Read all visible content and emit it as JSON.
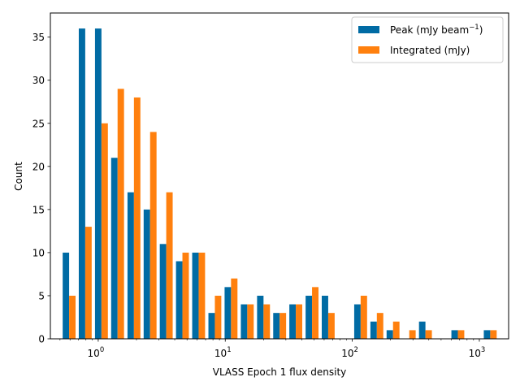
{
  "chart_data": {
    "type": "bar",
    "title": "",
    "xlabel": "VLASS Epoch 1 flux density",
    "ylabel": "Count",
    "xscale": "log",
    "xlim": [
      0.42,
      1700
    ],
    "ylim": [
      0,
      37.8
    ],
    "x_ticks": [
      {
        "base": "10",
        "exp": "0",
        "value": 1
      },
      {
        "base": "10",
        "exp": "1",
        "value": 10
      },
      {
        "base": "10",
        "exp": "2",
        "value": 100
      },
      {
        "base": "10",
        "exp": "3",
        "value": 1000
      }
    ],
    "y_ticks": [
      "0",
      "5",
      "10",
      "15",
      "20",
      "25",
      "30",
      "35"
    ],
    "legend_position": "top-right",
    "bin_centers": [
      0.59,
      0.79,
      1.06,
      1.42,
      1.91,
      2.56,
      3.43,
      4.6,
      6.17,
      8.28,
      11.1,
      14.9,
      20.0,
      26.8,
      35.9,
      48.2,
      64.6,
      86.7,
      116.3,
      156.0,
      209.2,
      280.6,
      376.4,
      504.9,
      677.2,
      908.4,
      1218.4
    ],
    "series": [
      {
        "name": "Peak",
        "legend_label": "Peak (mJy beam",
        "legend_sup": "−1",
        "legend_suffix": ")",
        "color": "#006BA4",
        "values": [
          10,
          36,
          36,
          21,
          17,
          15,
          11,
          9,
          10,
          3,
          6,
          4,
          5,
          3,
          4,
          5,
          5,
          0,
          4,
          2,
          1,
          0,
          2,
          0,
          1,
          0,
          1
        ]
      },
      {
        "name": "Integrated",
        "legend_label": "Integrated (mJy)",
        "color": "#FF800E",
        "values": [
          5,
          13,
          25,
          29,
          28,
          24,
          17,
          10,
          10,
          5,
          7,
          4,
          4,
          3,
          4,
          6,
          3,
          0,
          5,
          3,
          2,
          1,
          1,
          0,
          1,
          0,
          1
        ]
      }
    ]
  }
}
